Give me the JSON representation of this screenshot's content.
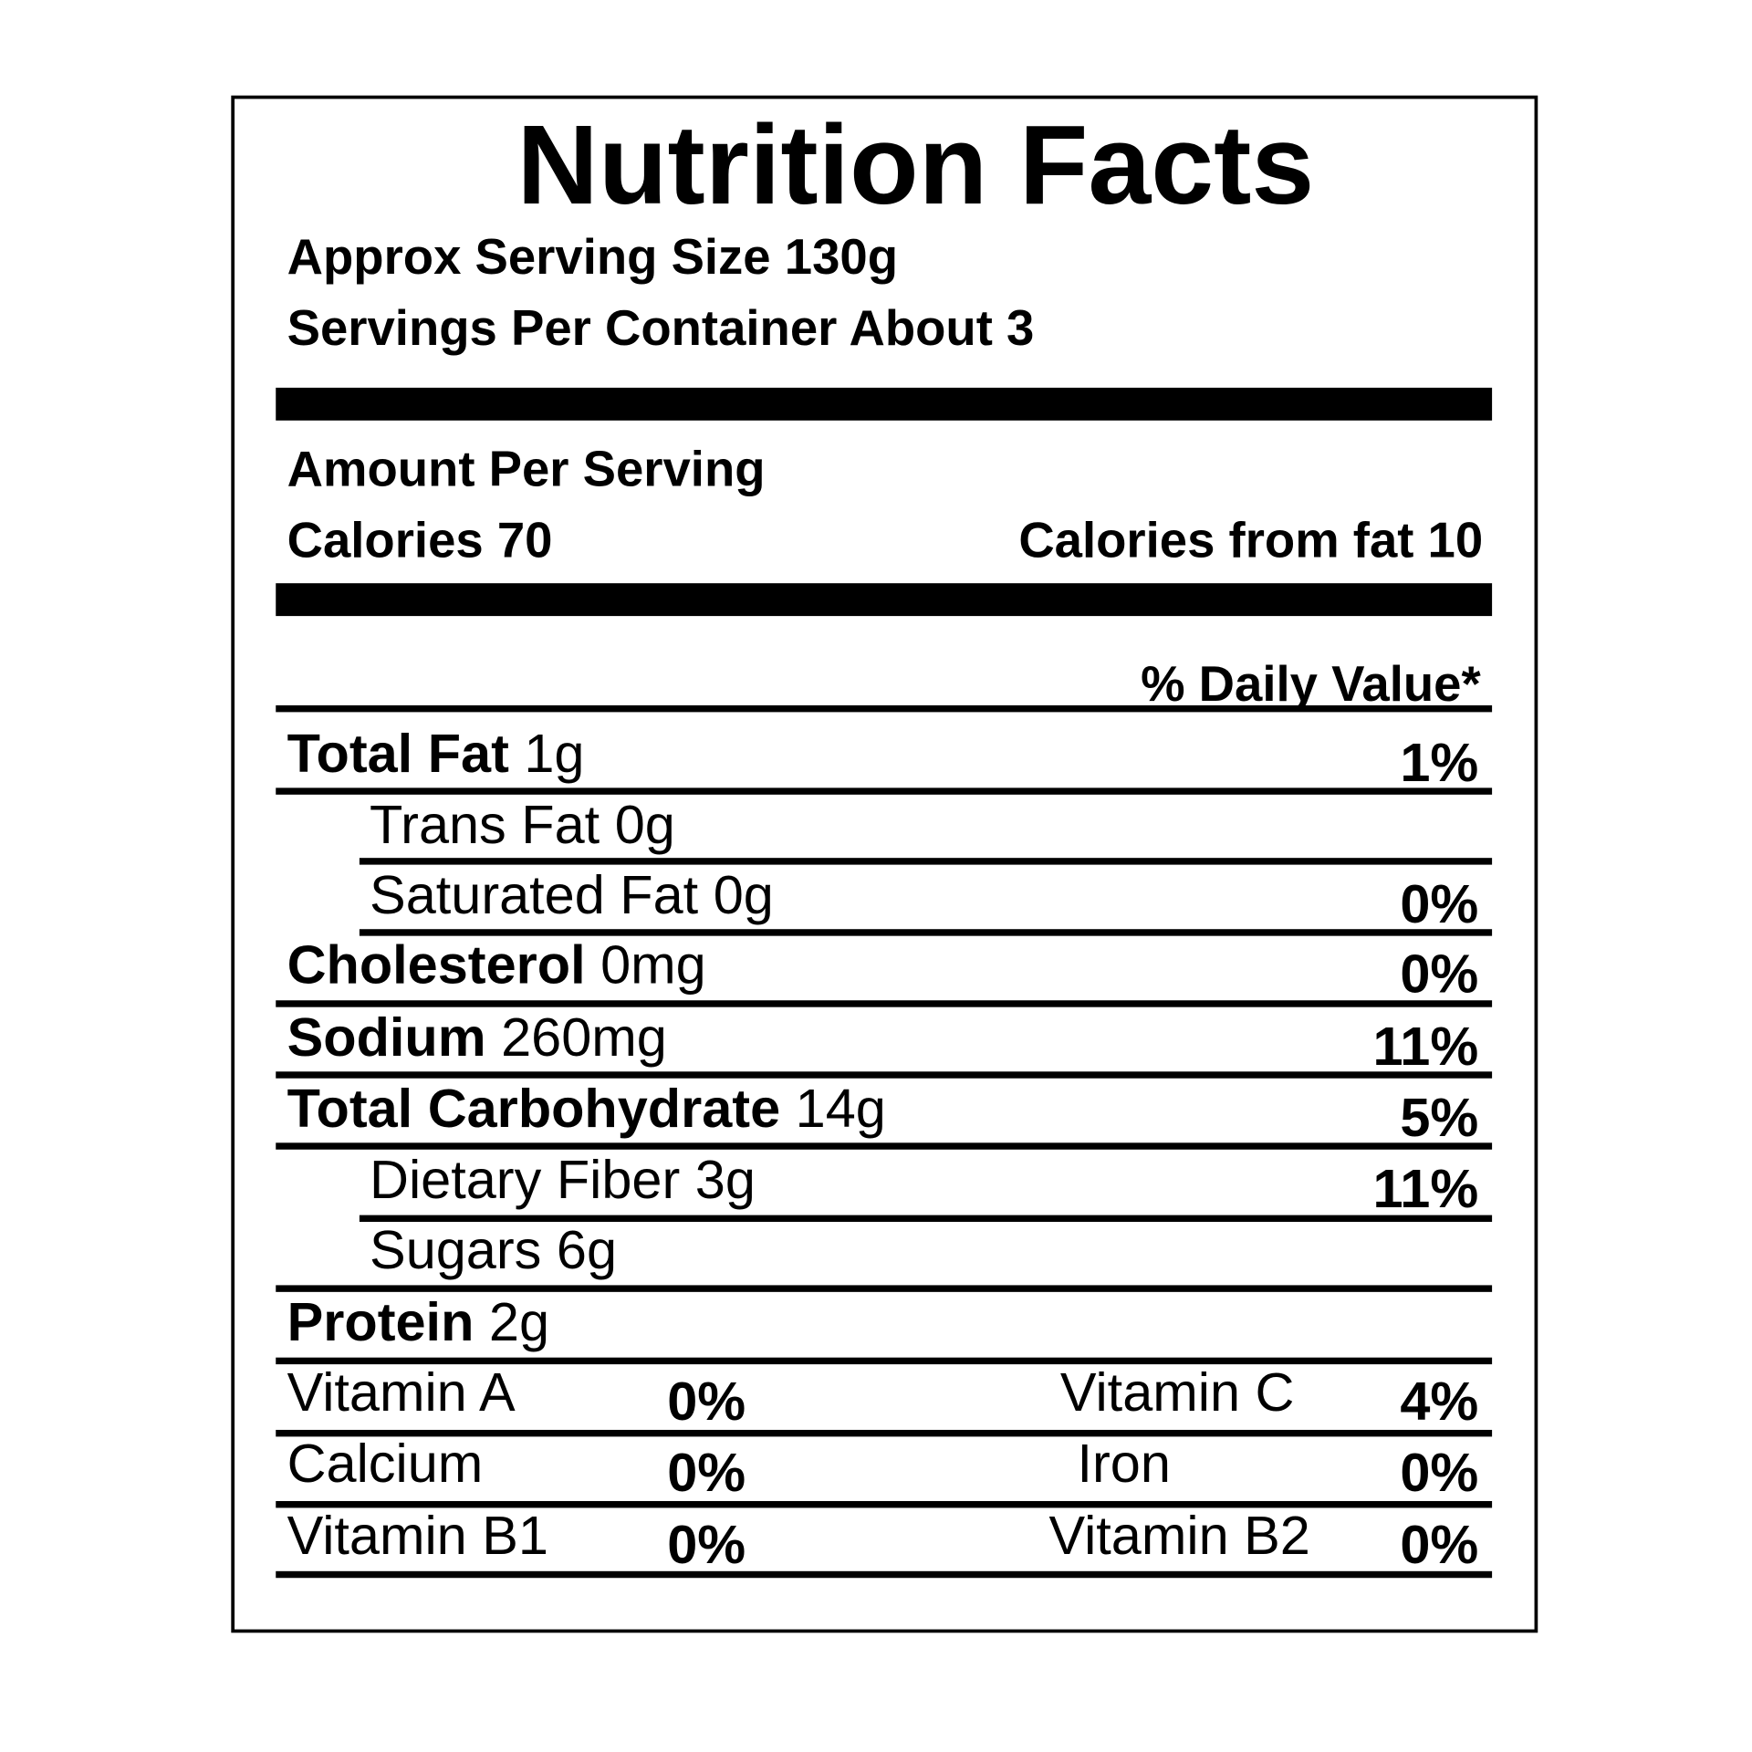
{
  "title": "Nutrition Facts",
  "serving_size": "Approx Serving Size 130g",
  "servings_per_container": "Servings Per Container About 3",
  "amount_per_serving": "Amount Per Serving",
  "calories": "Calories 70",
  "calories_from_fat": "Calories from fat 10",
  "daily_value_header": "% Daily Value*",
  "nutrients": [
    {
      "name": "Total Fat",
      "amount": "1g",
      "dv": "1%"
    },
    {
      "name": "Trans Fat",
      "amount": "0g"
    },
    {
      "name": "Saturated Fat",
      "amount": "0g",
      "dv": "0%"
    },
    {
      "name": "Cholesterol",
      "amount": "0mg",
      "dv": "0%"
    },
    {
      "name": "Sodium",
      "amount": "260mg",
      "dv": "11%"
    },
    {
      "name": "Total Carbohydrate",
      "amount": "14g",
      "dv": "5%"
    },
    {
      "name": "Dietary Fiber",
      "amount": "3g",
      "dv": "11%"
    },
    {
      "name": "Sugars",
      "amount": "6g"
    },
    {
      "name": "Protein",
      "amount": "2g"
    }
  ],
  "vitamins": [
    [
      {
        "name": "Vitamin A",
        "dv": "0%"
      },
      {
        "name": "Vitamin C",
        "dv": "4%"
      }
    ],
    [
      {
        "name": "Calcium",
        "dv": "0%"
      },
      {
        "name": "Iron",
        "dv": "0%"
      }
    ],
    [
      {
        "name": "Vitamin B1",
        "dv": "0%"
      },
      {
        "name": "Vitamin B2",
        "dv": "0%"
      }
    ]
  ]
}
